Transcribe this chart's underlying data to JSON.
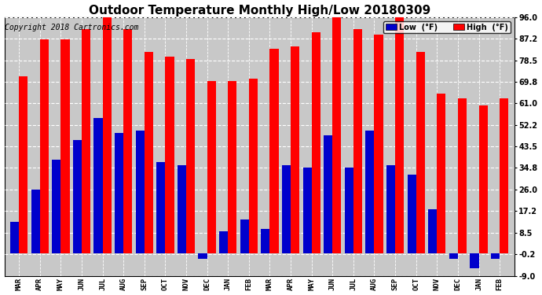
{
  "title": "Outdoor Temperature Monthly High/Low 20180309",
  "copyright": "Copyright 2018 Cartronics.com",
  "months": [
    "MAR",
    "APR",
    "MAY",
    "JUN",
    "JUL",
    "AUG",
    "SEP",
    "OCT",
    "NOV",
    "DEC",
    "JAN",
    "FEB",
    "MAR",
    "APR",
    "MAY",
    "JUN",
    "JUL",
    "AUG",
    "SEP",
    "OCT",
    "NOV",
    "DEC",
    "JAN",
    "FEB"
  ],
  "high_vals": [
    72,
    87,
    87,
    91,
    96,
    91,
    82,
    80,
    79,
    70,
    70,
    71,
    83,
    84,
    90,
    96,
    91,
    89,
    96,
    82,
    65,
    63,
    60,
    63
  ],
  "low_vals": [
    13,
    26,
    38,
    46,
    55,
    49,
    50,
    37,
    36,
    -2,
    9,
    14,
    10,
    36,
    35,
    48,
    35,
    50,
    36,
    32,
    18,
    -2,
    -6,
    -2
  ],
  "high_color": "#ff0000",
  "low_color": "#0000cc",
  "bg_color": "#ffffff",
  "plot_bg_color": "#c8c8c8",
  "ylim": [
    -9.0,
    96.0
  ],
  "yticks": [
    -9.0,
    -0.2,
    8.5,
    17.2,
    26.0,
    34.8,
    43.5,
    52.2,
    61.0,
    69.8,
    78.5,
    87.2,
    96.0
  ],
  "title_fontsize": 11,
  "copyright_fontsize": 7,
  "bar_width": 0.42
}
